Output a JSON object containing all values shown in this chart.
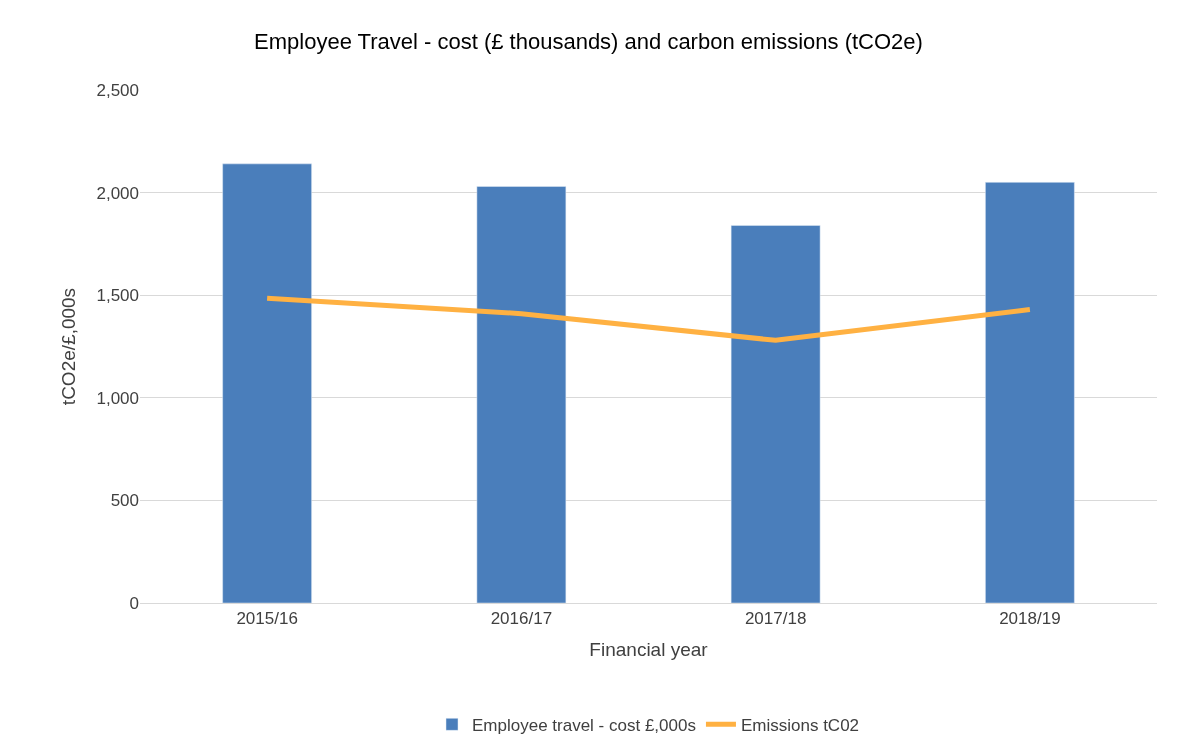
{
  "chart_data": {
    "type": "bar",
    "title": "Employee Travel - cost (£ thousands) and carbon emissions (tCO2e)",
    "xlabel": "Financial year",
    "ylabel": "tCO2e/£,000s",
    "categories": [
      "2015/16",
      "2016/17",
      "2017/18",
      "2018/19"
    ],
    "series": [
      {
        "name": "Employee travel - cost £,000s",
        "color": "#4a7ebb",
        "values": [
          2140,
          2030,
          1840,
          2050
        ]
      },
      {
        "name": "Emissions tC02",
        "type": "line",
        "color": "#ffb142",
        "values": [
          1485,
          1410,
          1280,
          1430
        ],
        "marker": "none"
      }
    ],
    "ylim": [
      0,
      2500
    ],
    "yticks": [
      {
        "value": 0,
        "label": "0"
      },
      {
        "value": 500,
        "label": "500"
      },
      {
        "value": 1000,
        "label": "1,000"
      },
      {
        "value": 1500,
        "label": "1,500"
      },
      {
        "value": 2000,
        "label": "2,000"
      },
      {
        "value": 2500,
        "label": "2,500"
      }
    ],
    "grid": "y",
    "legend": "bottom"
  }
}
